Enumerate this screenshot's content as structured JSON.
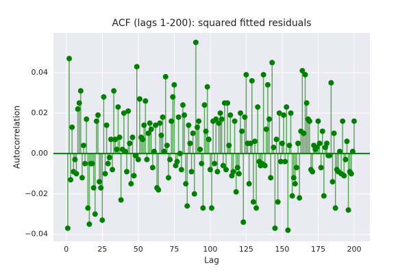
{
  "chart_data": {
    "type": "stem",
    "title": "ACF (lags 1-200): squared fitted residuals",
    "x_label": "Lag",
    "y_label": "Autocorrelation",
    "x": [
      1,
      2,
      3,
      4,
      5,
      6,
      7,
      8,
      9,
      10,
      11,
      12,
      13,
      14,
      15,
      16,
      17,
      18,
      19,
      20,
      21,
      22,
      23,
      24,
      25,
      26,
      27,
      28,
      29,
      30,
      31,
      32,
      33,
      34,
      35,
      36,
      37,
      38,
      39,
      40,
      41,
      42,
      43,
      44,
      45,
      46,
      47,
      48,
      49,
      50,
      51,
      52,
      53,
      54,
      55,
      56,
      57,
      58,
      59,
      60,
      61,
      62,
      63,
      64,
      65,
      66,
      67,
      68,
      69,
      70,
      71,
      72,
      73,
      74,
      75,
      76,
      77,
      78,
      79,
      80,
      81,
      82,
      83,
      84,
      85,
      86,
      87,
      88,
      89,
      90,
      91,
      92,
      93,
      94,
      95,
      96,
      97,
      98,
      99,
      100,
      101,
      102,
      103,
      104,
      105,
      106,
      107,
      108,
      109,
      110,
      111,
      112,
      113,
      114,
      115,
      116,
      117,
      118,
      119,
      120,
      121,
      122,
      123,
      124,
      125,
      126,
      127,
      128,
      129,
      130,
      131,
      132,
      133,
      134,
      135,
      136,
      137,
      138,
      139,
      140,
      141,
      142,
      143,
      144,
      145,
      146,
      147,
      148,
      149,
      150,
      151,
      152,
      153,
      154,
      155,
      156,
      157,
      158,
      159,
      160,
      161,
      162,
      163,
      164,
      165,
      166,
      167,
      168,
      169,
      170,
      171,
      172,
      173,
      174,
      175,
      176,
      177,
      178,
      179,
      180,
      181,
      182,
      183,
      184,
      185,
      186,
      187,
      188,
      189,
      190,
      191,
      192,
      193,
      194,
      195,
      196,
      197,
      198,
      199,
      200
    ],
    "values": [
      -0.037,
      0.047,
      -0.013,
      0.013,
      -0.009,
      -0.003,
      -0.01,
      0.022,
      0.025,
      0.031,
      -0.012,
      0.004,
      -0.005,
      0.017,
      -0.027,
      -0.035,
      -0.005,
      -0.005,
      -0.017,
      -0.03,
      0.016,
      0.019,
      -0.014,
      -0.017,
      -0.033,
      0.028,
      -0.01,
      0.014,
      -0.005,
      -0.002,
      0.007,
      -0.008,
      0.031,
      0.007,
      0.002,
      0.023,
      0.008,
      -0.023,
      0.002,
      0.02,
      0.001,
      -0.009,
      0.021,
      0.005,
      -0.015,
      0.008,
      -0.011,
      -0.001,
      0.043,
      -0.003,
      0.027,
      0.008,
      0.007,
      0.014,
      0.026,
      -0.003,
      0.01,
      0.015,
      0.012,
      -0.007,
      0.001,
      0.014,
      -0.017,
      -0.018,
      0.015,
      0.009,
      0.018,
      0.001,
      0.038,
      0.004,
      -0.012,
      -0.003,
      0.016,
      0.028,
      0.034,
      -0.006,
      -0.004,
      0.018,
      0.0,
      -0.008,
      0.024,
      0.019,
      -0.015,
      -0.026,
      0.014,
      0.005,
      -0.009,
      0.01,
      -0.02,
      0.055,
      0.013,
      0.016,
      0.002,
      -0.005,
      -0.027,
      0.024,
      0.011,
      0.033,
      0.007,
      -0.008,
      -0.027,
      0.016,
      -0.005,
      0.017,
      -0.009,
      0.015,
      0.02,
      0.017,
      -0.006,
      0.025,
      -0.008,
      0.025,
      0.004,
      0.019,
      -0.011,
      -0.009,
      0.016,
      -0.019,
      -0.007,
      -0.01,
      0.02,
      0.011,
      -0.034,
      0.018,
      0.039,
      0.005,
      -0.015,
      0.005,
      0.036,
      -0.024,
      0.006,
      -0.027,
      0.023,
      -0.004,
      -0.006,
      -0.005,
      0.039,
      -0.006,
      0.012,
      0.034,
      0.017,
      -0.012,
      0.045,
      0.003,
      -0.037,
      0.007,
      -0.024,
      0.02,
      -0.004,
      0.005,
      0.019,
      -0.004,
      0.023,
      -0.038,
      0.004,
      0.02,
      -0.021,
      -0.012,
      -0.015,
      -0.007,
      0.005,
      -0.022,
      0.011,
      0.041,
      0.01,
      0.039,
      0.025,
      0.017,
      0.016,
      -0.008,
      -0.009,
      0.004,
      0.002,
      0.003,
      0.016,
      0.005,
      -0.007,
      0.011,
      -0.021,
      0.003,
      0.005,
      -0.001,
      -0.001,
      0.035,
      -0.014,
      0.01,
      -0.027,
      -0.008,
      -0.009,
      0.001,
      -0.01,
      0.016,
      -0.011,
      -0.003,
      0.006,
      -0.028,
      -0.009,
      -0.01,
      0.001,
      0.016
    ],
    "color": "#008000",
    "stem_color": "#5aa85a",
    "baseline": 0,
    "xlim": [
      -8.95,
      210.95
    ],
    "ylim": [
      -0.0435,
      0.0597
    ],
    "xticks": [
      0,
      25,
      50,
      75,
      100,
      125,
      150,
      175,
      200
    ],
    "yticks": [
      {
        "value": -0.04,
        "label": "−0.04"
      },
      {
        "value": -0.02,
        "label": "−0.02"
      },
      {
        "value": 0,
        "label": "0.00"
      },
      0.02,
      0.04
    ],
    "grid": true
  }
}
